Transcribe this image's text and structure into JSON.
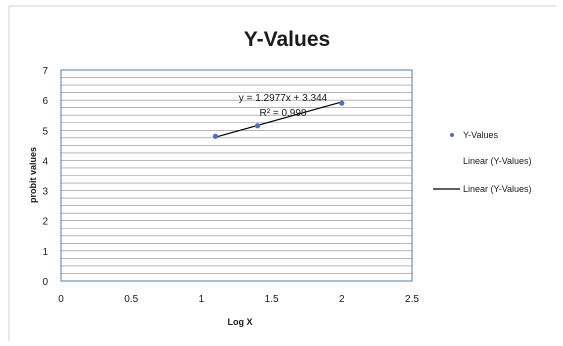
{
  "chart_data": {
    "type": "scatter",
    "title": "Y-Values",
    "xlabel": "Log X",
    "ylabel": "probit values",
    "xlim": [
      0,
      2.5
    ],
    "ylim": [
      0,
      7
    ],
    "x_ticks": [
      "0",
      "0.5",
      "1",
      "1.5",
      "2",
      "2.5"
    ],
    "y_ticks": [
      "0",
      "1",
      "2",
      "3",
      "4",
      "5",
      "6",
      "7"
    ],
    "grid": true,
    "series": [
      {
        "name": "Y-Values",
        "x": [
          1.1,
          1.4,
          2.0
        ],
        "y": [
          4.8,
          5.15,
          5.9
        ],
        "color": "#4472c4"
      }
    ],
    "trendline": {
      "name": "Linear (Y-Values)",
      "slope": 1.2977,
      "intercept": 3.344,
      "x_range": [
        1.1,
        2.0
      ],
      "equation": "y = 1.2977x + 3.344",
      "r_squared": "R² = 0.998",
      "color": "#000000"
    },
    "legend": {
      "position": "right",
      "entries": [
        "Y-Values",
        "Linear (Y-Values)",
        "Linear (Y-Values)"
      ]
    }
  },
  "colors": {
    "plot_border": "#4a7ebb",
    "gridline": "#8c8c8c",
    "frame_border": "#d0d0d0"
  }
}
